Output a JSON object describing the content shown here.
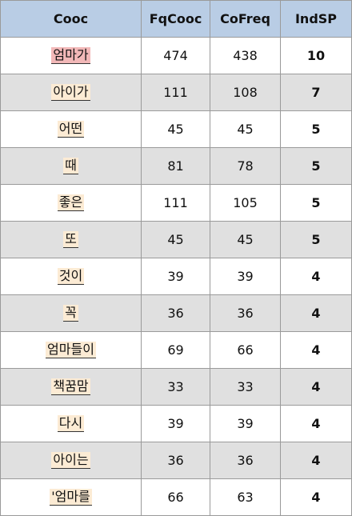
{
  "table": {
    "headers": {
      "cooc": "Cooc",
      "fqcooc": "FqCooc",
      "cofreq": "CoFreq",
      "indsp": "IndSP"
    },
    "highlight_color": "#f2b8b8",
    "word_bg_color": "#fcebd4",
    "header_bg_color": "#b9cde5",
    "indsp_color": "#e03a2e",
    "rows": [
      {
        "cooc": "엄마가",
        "fqcooc": "474",
        "cofreq": "438",
        "indsp": "10"
      },
      {
        "cooc": "아이가",
        "fqcooc": "111",
        "cofreq": "108",
        "indsp": "7"
      },
      {
        "cooc": "어떤",
        "fqcooc": "45",
        "cofreq": "45",
        "indsp": "5"
      },
      {
        "cooc": "때",
        "fqcooc": "81",
        "cofreq": "78",
        "indsp": "5"
      },
      {
        "cooc": "좋은",
        "fqcooc": "111",
        "cofreq": "105",
        "indsp": "5"
      },
      {
        "cooc": "또",
        "fqcooc": "45",
        "cofreq": "45",
        "indsp": "5"
      },
      {
        "cooc": "것이",
        "fqcooc": "39",
        "cofreq": "39",
        "indsp": "4"
      },
      {
        "cooc": "꼭",
        "fqcooc": "36",
        "cofreq": "36",
        "indsp": "4"
      },
      {
        "cooc": "엄마들이",
        "fqcooc": "69",
        "cofreq": "66",
        "indsp": "4"
      },
      {
        "cooc": "책꿈맘",
        "fqcooc": "33",
        "cofreq": "33",
        "indsp": "4"
      },
      {
        "cooc": "다시",
        "fqcooc": "39",
        "cofreq": "39",
        "indsp": "4"
      },
      {
        "cooc": "아이는",
        "fqcooc": "36",
        "cofreq": "36",
        "indsp": "4"
      },
      {
        "cooc": "'엄마를",
        "fqcooc": "66",
        "cofreq": "63",
        "indsp": "4"
      }
    ]
  }
}
